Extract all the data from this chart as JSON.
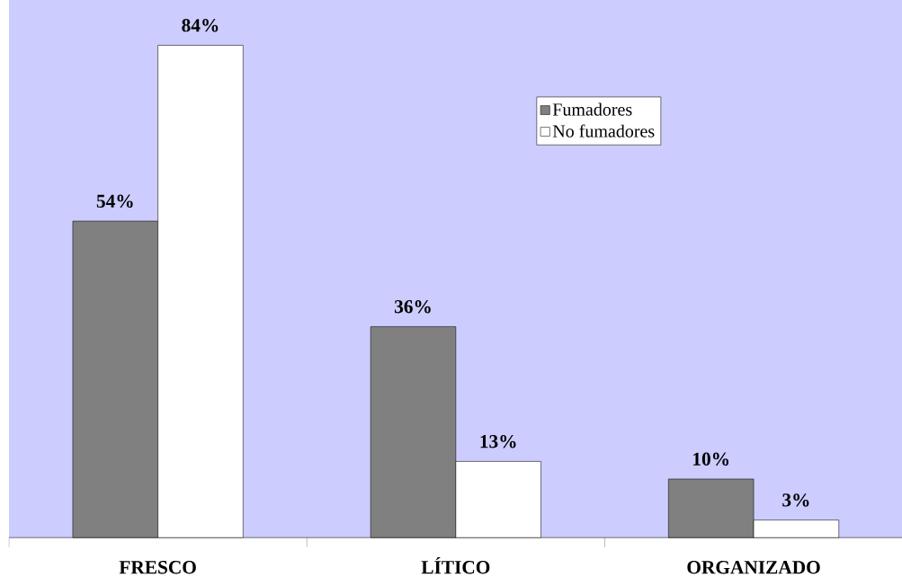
{
  "chart_data": {
    "type": "bar",
    "categories": [
      "FRESCO",
      "LÍTICO",
      "ORGANIZADO"
    ],
    "series": [
      {
        "name": "Fumadores",
        "color": "#808080",
        "values": [
          54,
          36,
          10
        ],
        "value_labels": [
          "54%",
          "36%",
          "10%"
        ]
      },
      {
        "name": "No fumadores",
        "color": "#ffffff",
        "values": [
          84,
          13,
          3
        ],
        "value_labels": [
          "84%",
          "13%",
          "3%"
        ]
      }
    ],
    "legend": "top"
  }
}
